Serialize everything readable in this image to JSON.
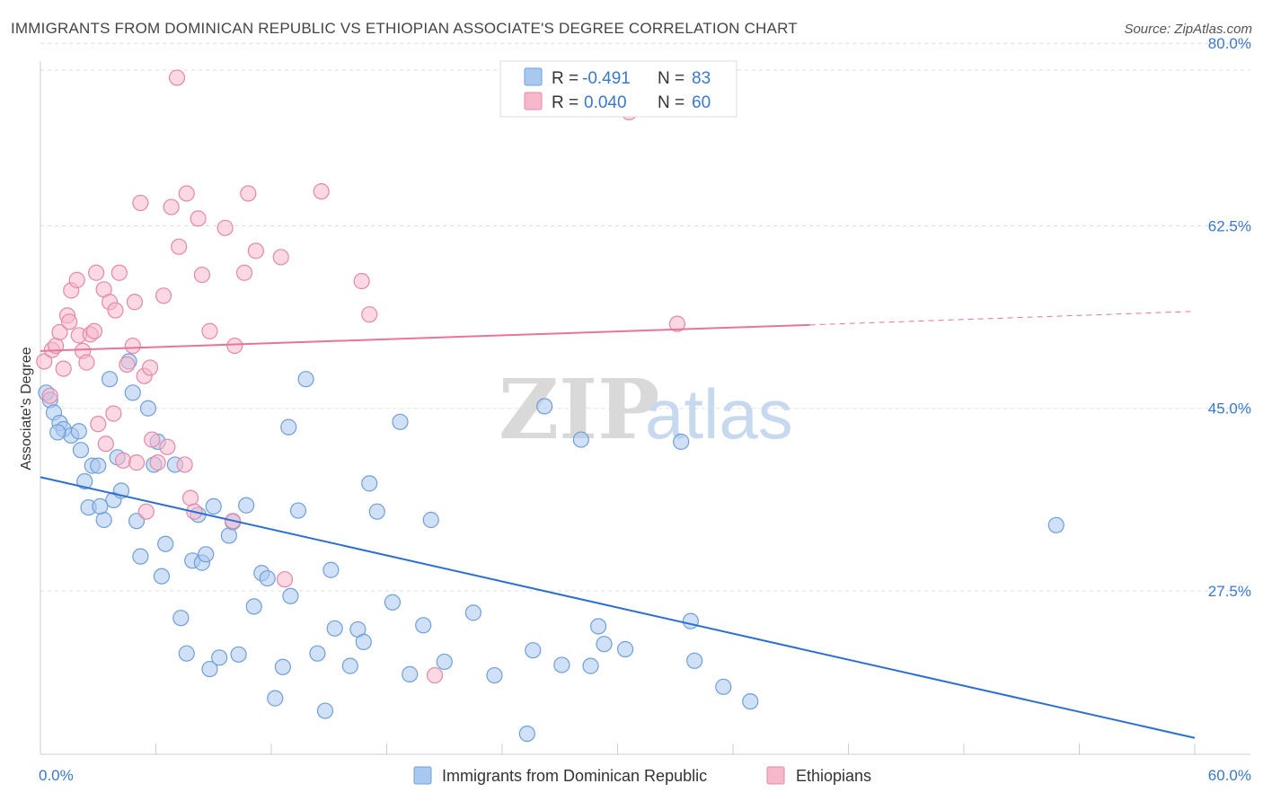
{
  "header": {
    "title": "IMMIGRANTS FROM DOMINICAN REPUBLIC VS ETHIOPIAN ASSOCIATE'S DEGREE CORRELATION CHART",
    "source": "Source: ZipAtlas.com"
  },
  "watermark": {
    "zip": "ZIP",
    "atlas": "atlas"
  },
  "legend": {
    "r_label": "R =",
    "n_label": "N =",
    "rows": [
      {
        "r": "-0.491",
        "n": "83",
        "color": "#a9c8f0",
        "stroke": "#6f9fd8"
      },
      {
        "r": "0.040",
        "n": "60",
        "color": "#f7b8cc",
        "stroke": "#e38aa6"
      }
    ]
  },
  "colors": {
    "blue_line": "#2b6fd1",
    "pink_line": "#e8749a",
    "axis_text": "#3a78c9",
    "grid": "#dddddd"
  },
  "chart_data": {
    "type": "scatter",
    "title": "IMMIGRANTS FROM DOMINICAN REPUBLIC VS ETHIOPIAN ASSOCIATE'S DEGREE CORRELATION CHART",
    "xlabel": "",
    "ylabel": "Associate's Degree",
    "xlim": [
      0,
      60
    ],
    "ylim": [
      12,
      82
    ],
    "x_tick_labels": [
      "0.0%",
      "60.0%"
    ],
    "y_ticks": [
      27.5,
      45.0,
      62.5,
      80.0
    ],
    "y_tick_labels": [
      "27.5%",
      "45.0%",
      "62.5%",
      "80.0%"
    ],
    "grid": true,
    "legend_position": "top-center",
    "series": [
      {
        "name": "Immigrants from Dominican Republic",
        "color": "#a9c8f0",
        "stroke": "#6f9fd8",
        "trend": {
          "x": [
            0,
            60
          ],
          "y": [
            38.4,
            13.4
          ]
        },
        "points": [
          [
            0.3,
            46.5
          ],
          [
            0.5,
            45.8
          ],
          [
            0.7,
            44.6
          ],
          [
            1.0,
            43.6
          ],
          [
            1.2,
            43.0
          ],
          [
            1.6,
            42.4
          ],
          [
            2.0,
            42.8
          ],
          [
            2.1,
            41.0
          ],
          [
            2.3,
            38.0
          ],
          [
            2.5,
            35.5
          ],
          [
            2.7,
            39.5
          ],
          [
            3.0,
            39.5
          ],
          [
            3.3,
            34.3
          ],
          [
            3.6,
            47.8
          ],
          [
            3.8,
            36.2
          ],
          [
            4.0,
            40.3
          ],
          [
            4.2,
            37.1
          ],
          [
            4.6,
            49.5
          ],
          [
            4.8,
            46.5
          ],
          [
            5.0,
            34.2
          ],
          [
            5.2,
            30.8
          ],
          [
            5.6,
            45.0
          ],
          [
            5.9,
            39.6
          ],
          [
            6.1,
            41.8
          ],
          [
            6.3,
            28.9
          ],
          [
            6.5,
            32.0
          ],
          [
            7.0,
            39.6
          ],
          [
            7.3,
            24.9
          ],
          [
            7.6,
            21.5
          ],
          [
            7.9,
            30.4
          ],
          [
            8.2,
            34.8
          ],
          [
            8.4,
            30.2
          ],
          [
            8.6,
            31.0
          ],
          [
            8.8,
            20.0
          ],
          [
            9.0,
            35.6
          ],
          [
            9.3,
            21.1
          ],
          [
            9.8,
            32.8
          ],
          [
            10.0,
            34.1
          ],
          [
            10.3,
            21.4
          ],
          [
            10.7,
            35.7
          ],
          [
            11.1,
            26.0
          ],
          [
            11.5,
            29.2
          ],
          [
            11.8,
            28.7
          ],
          [
            12.2,
            17.2
          ],
          [
            12.6,
            20.2
          ],
          [
            12.9,
            43.2
          ],
          [
            13.0,
            27.0
          ],
          [
            13.4,
            35.2
          ],
          [
            13.8,
            47.8
          ],
          [
            14.4,
            21.5
          ],
          [
            14.8,
            16.0
          ],
          [
            15.1,
            29.5
          ],
          [
            15.3,
            23.9
          ],
          [
            16.1,
            20.3
          ],
          [
            16.5,
            23.8
          ],
          [
            16.8,
            22.6
          ],
          [
            17.1,
            37.8
          ],
          [
            17.5,
            35.1
          ],
          [
            18.3,
            26.4
          ],
          [
            18.7,
            43.7
          ],
          [
            19.2,
            19.5
          ],
          [
            19.9,
            24.2
          ],
          [
            20.3,
            34.3
          ],
          [
            21.0,
            20.7
          ],
          [
            22.5,
            25.4
          ],
          [
            23.6,
            19.4
          ],
          [
            25.3,
            13.8
          ],
          [
            25.6,
            21.8
          ],
          [
            26.2,
            45.2
          ],
          [
            27.1,
            20.4
          ],
          [
            28.1,
            42.0
          ],
          [
            28.6,
            20.3
          ],
          [
            29.0,
            24.1
          ],
          [
            29.3,
            22.4
          ],
          [
            30.4,
            21.9
          ],
          [
            33.3,
            41.8
          ],
          [
            33.8,
            24.6
          ],
          [
            34.0,
            20.8
          ],
          [
            35.5,
            18.3
          ],
          [
            36.9,
            16.9
          ],
          [
            52.8,
            33.8
          ],
          [
            3.1,
            35.6
          ],
          [
            0.9,
            42.7
          ]
        ]
      },
      {
        "name": "Ethiopians",
        "color": "#f7b8cc",
        "stroke": "#e38aa6",
        "trend": {
          "x": [
            0,
            40
          ],
          "y": [
            50.5,
            53.0
          ]
        },
        "trend_dashed": {
          "x": [
            40,
            60
          ],
          "y": [
            53.0,
            54.3
          ]
        },
        "points": [
          [
            0.2,
            49.5
          ],
          [
            0.5,
            46.2
          ],
          [
            0.6,
            50.6
          ],
          [
            0.8,
            51.0
          ],
          [
            1.0,
            52.3
          ],
          [
            1.2,
            48.8
          ],
          [
            1.4,
            53.9
          ],
          [
            1.5,
            53.3
          ],
          [
            1.6,
            56.3
          ],
          [
            1.9,
            57.3
          ],
          [
            2.0,
            52.0
          ],
          [
            2.2,
            50.5
          ],
          [
            2.4,
            49.4
          ],
          [
            2.6,
            52.1
          ],
          [
            2.8,
            52.4
          ],
          [
            2.9,
            58.0
          ],
          [
            3.0,
            43.5
          ],
          [
            3.3,
            56.4
          ],
          [
            3.4,
            41.6
          ],
          [
            3.6,
            55.2
          ],
          [
            3.8,
            44.5
          ],
          [
            3.9,
            54.4
          ],
          [
            4.1,
            58.0
          ],
          [
            4.3,
            40.0
          ],
          [
            4.5,
            49.2
          ],
          [
            4.8,
            51.0
          ],
          [
            5.0,
            39.8
          ],
          [
            5.2,
            64.7
          ],
          [
            5.4,
            48.1
          ],
          [
            5.5,
            35.1
          ],
          [
            5.7,
            48.9
          ],
          [
            5.8,
            42.0
          ],
          [
            6.1,
            39.8
          ],
          [
            6.4,
            55.8
          ],
          [
            6.6,
            41.3
          ],
          [
            6.8,
            64.3
          ],
          [
            7.1,
            76.7
          ],
          [
            7.2,
            60.5
          ],
          [
            7.5,
            39.6
          ],
          [
            7.6,
            65.6
          ],
          [
            7.8,
            36.4
          ],
          [
            8.0,
            35.1
          ],
          [
            8.2,
            63.2
          ],
          [
            8.4,
            57.8
          ],
          [
            8.8,
            52.4
          ],
          [
            9.6,
            62.3
          ],
          [
            10.0,
            34.2
          ],
          [
            10.1,
            51.0
          ],
          [
            10.6,
            58.0
          ],
          [
            10.8,
            65.6
          ],
          [
            11.2,
            60.1
          ],
          [
            12.5,
            59.5
          ],
          [
            12.7,
            28.6
          ],
          [
            14.6,
            65.8
          ],
          [
            16.7,
            57.2
          ],
          [
            17.1,
            54.0
          ],
          [
            20.5,
            19.4
          ],
          [
            30.6,
            73.4
          ],
          [
            33.1,
            53.1
          ],
          [
            4.9,
            55.2
          ]
        ]
      }
    ]
  },
  "bottom_legend": [
    {
      "label": "Immigrants from Dominican Republic",
      "color": "#a9c8f0",
      "stroke": "#6f9fd8"
    },
    {
      "label": "Ethiopians",
      "color": "#f7b8cc",
      "stroke": "#e38aa6"
    }
  ]
}
